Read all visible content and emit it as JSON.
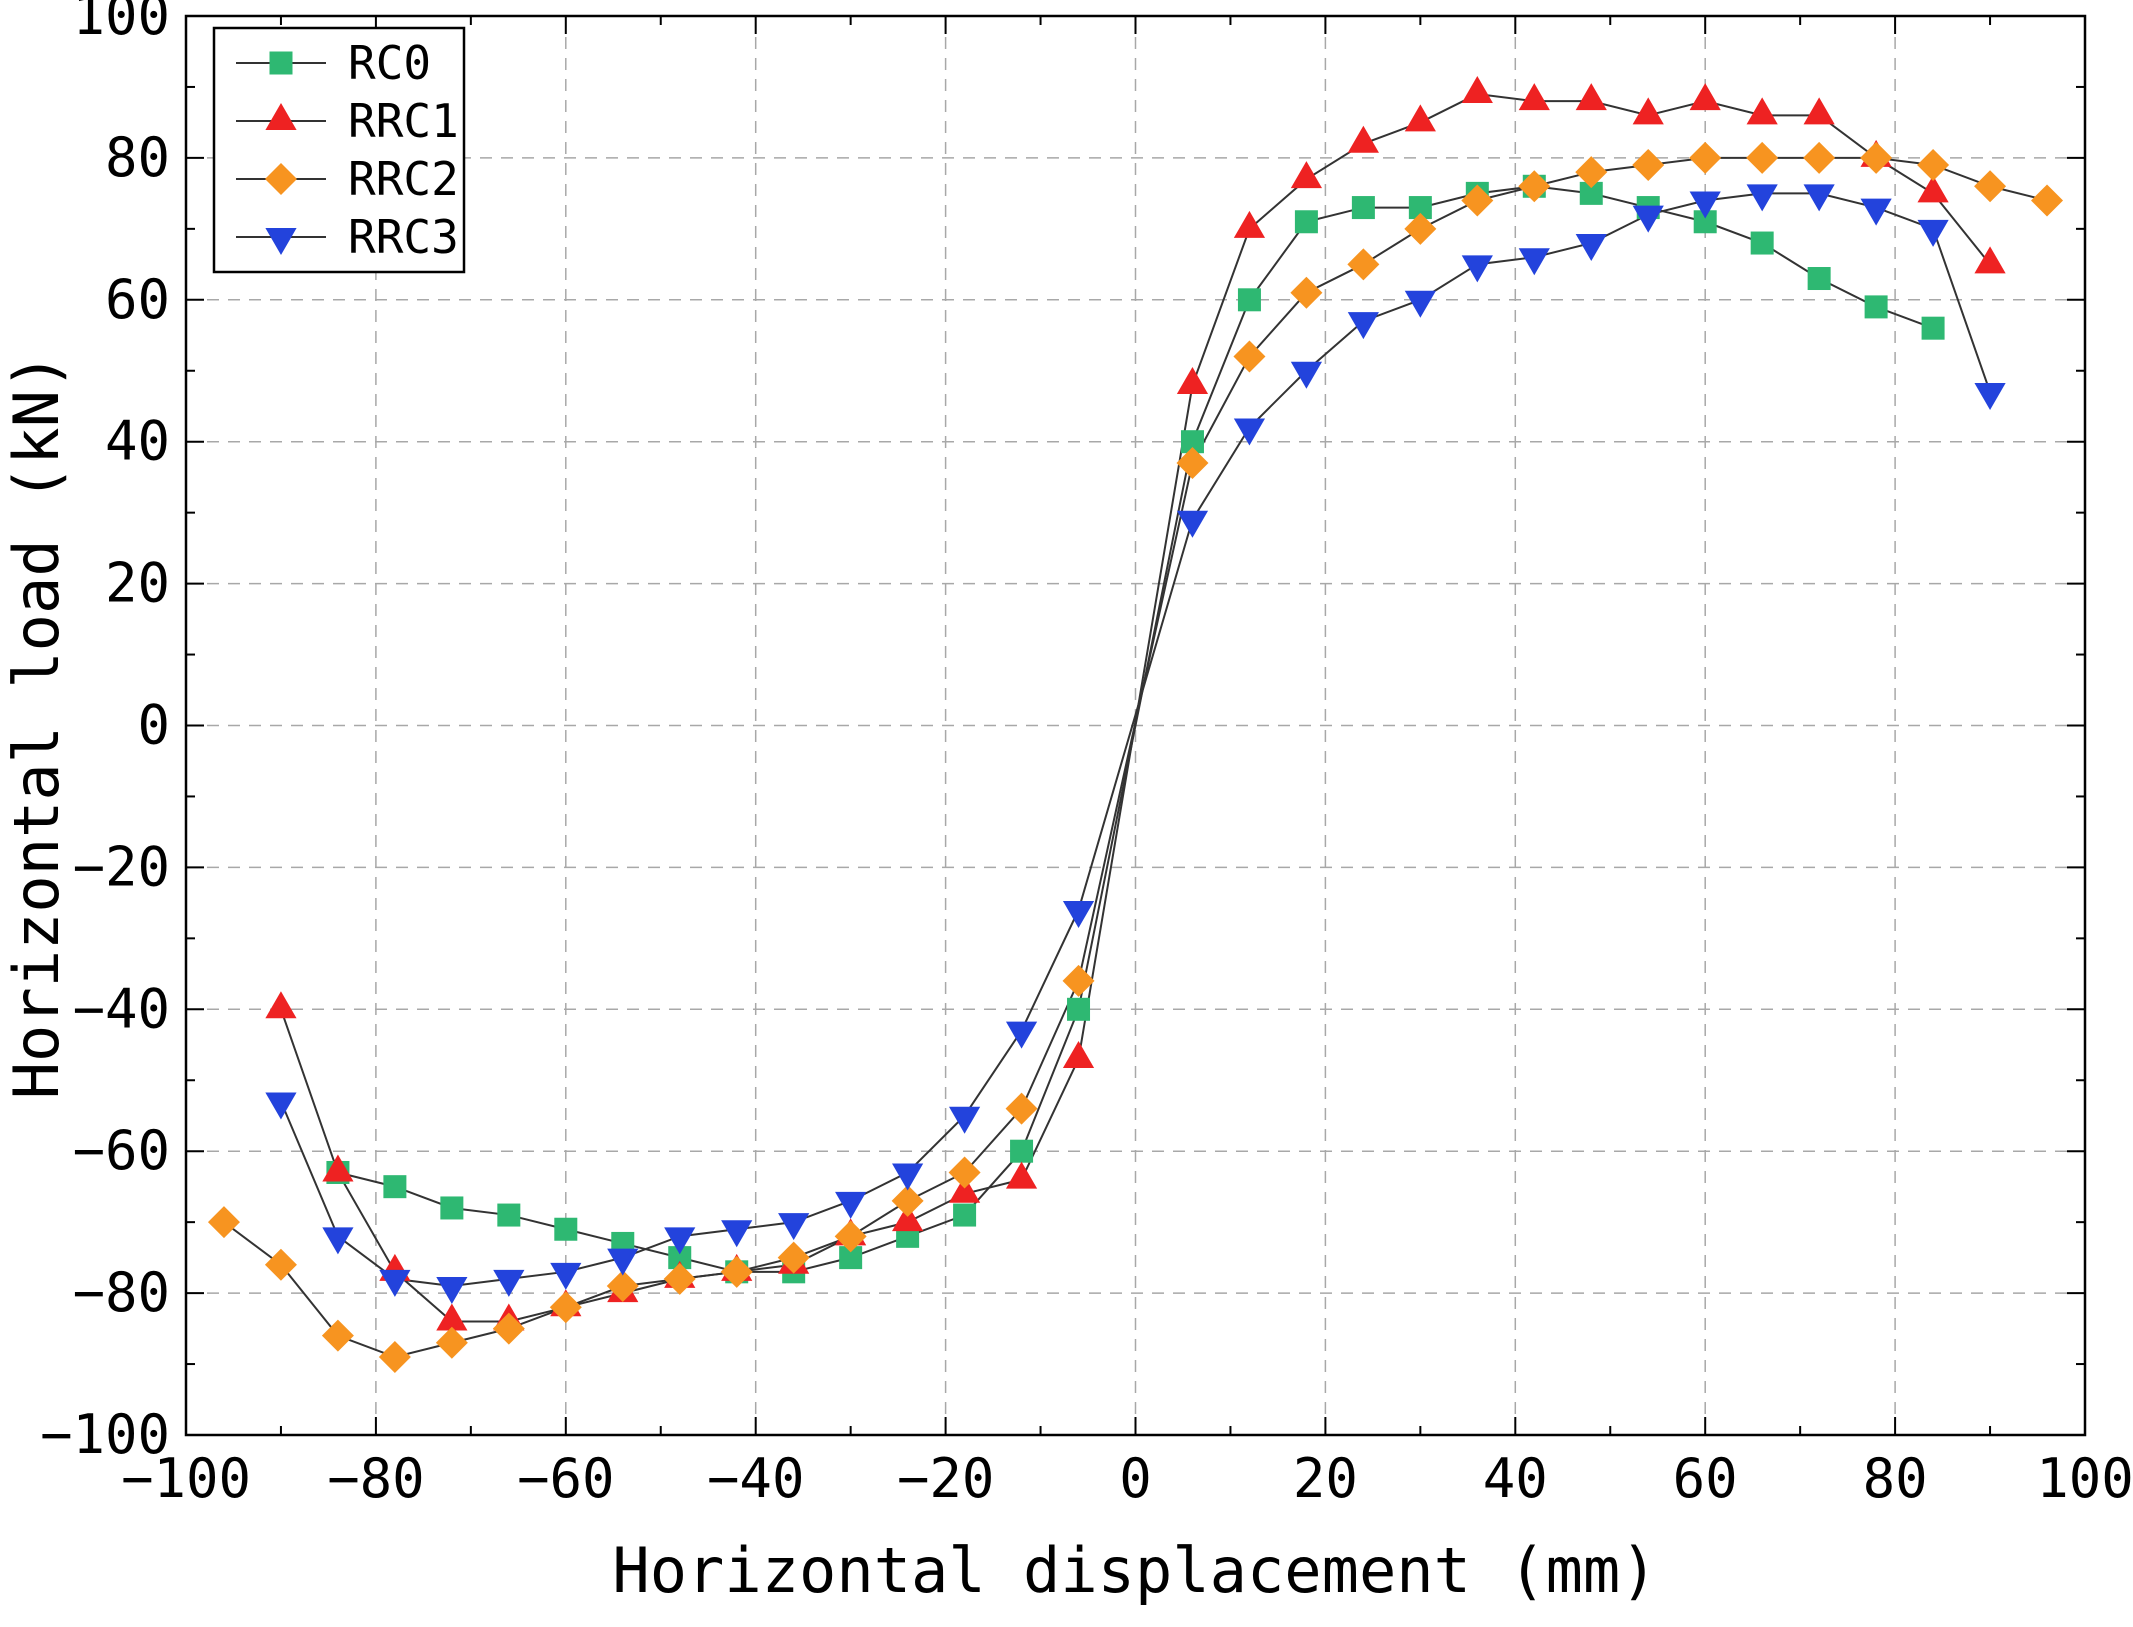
{
  "chart_data": {
    "type": "line",
    "title": "",
    "xlabel": "Horizontal displacement (mm)",
    "ylabel": "Horizontal load (kN)",
    "xlim": [
      -100,
      100
    ],
    "ylim": [
      -100,
      100
    ],
    "xtick_step": 20,
    "ytick_step": 20,
    "minor_tick_step": 10,
    "grid": {
      "show": true,
      "color": "#a8a8a8",
      "dash": [
        12,
        9
      ]
    },
    "line_color": "#333333",
    "legend": {
      "position": "top-left"
    },
    "series": [
      {
        "name": "RC0",
        "marker": "square",
        "color": "#2eb872",
        "points": [
          [
            -84,
            -63
          ],
          [
            -78,
            -65
          ],
          [
            -72,
            -68
          ],
          [
            -66,
            -69
          ],
          [
            -60,
            -71
          ],
          [
            -54,
            -73
          ],
          [
            -48,
            -75
          ],
          [
            -42,
            -77
          ],
          [
            -36,
            -77
          ],
          [
            -30,
            -75
          ],
          [
            -24,
            -72
          ],
          [
            -18,
            -69
          ],
          [
            -12,
            -60
          ],
          [
            -6,
            -40
          ],
          [
            6,
            40
          ],
          [
            12,
            60
          ],
          [
            18,
            71
          ],
          [
            24,
            73
          ],
          [
            30,
            73
          ],
          [
            36,
            75
          ],
          [
            42,
            76
          ],
          [
            48,
            75
          ],
          [
            54,
            73
          ],
          [
            60,
            71
          ],
          [
            66,
            68
          ],
          [
            72,
            63
          ],
          [
            78,
            59
          ],
          [
            84,
            56
          ]
        ]
      },
      {
        "name": "RRC1",
        "marker": "triangle-up",
        "color": "#ee2222",
        "points": [
          [
            -90,
            -40
          ],
          [
            -84,
            -63
          ],
          [
            -78,
            -77
          ],
          [
            -72,
            -84
          ],
          [
            -66,
            -84
          ],
          [
            -60,
            -82
          ],
          [
            -54,
            -80
          ],
          [
            -48,
            -78
          ],
          [
            -42,
            -77
          ],
          [
            -36,
            -76
          ],
          [
            -30,
            -72
          ],
          [
            -24,
            -70
          ],
          [
            -18,
            -66
          ],
          [
            -12,
            -64
          ],
          [
            -6,
            -47
          ],
          [
            6,
            48
          ],
          [
            12,
            70
          ],
          [
            18,
            77
          ],
          [
            24,
            82
          ],
          [
            30,
            85
          ],
          [
            36,
            89
          ],
          [
            42,
            88
          ],
          [
            48,
            88
          ],
          [
            54,
            86
          ],
          [
            60,
            88
          ],
          [
            66,
            86
          ],
          [
            72,
            86
          ],
          [
            78,
            80
          ],
          [
            84,
            75
          ],
          [
            90,
            65
          ]
        ]
      },
      {
        "name": "RRC2",
        "marker": "diamond",
        "color": "#f79420",
        "points": [
          [
            -96,
            -70
          ],
          [
            -90,
            -76
          ],
          [
            -84,
            -86
          ],
          [
            -78,
            -89
          ],
          [
            -72,
            -87
          ],
          [
            -66,
            -85
          ],
          [
            -60,
            -82
          ],
          [
            -54,
            -79
          ],
          [
            -48,
            -78
          ],
          [
            -42,
            -77
          ],
          [
            -36,
            -75
          ],
          [
            -30,
            -72
          ],
          [
            -24,
            -67
          ],
          [
            -18,
            -63
          ],
          [
            -12,
            -54
          ],
          [
            -6,
            -36
          ],
          [
            6,
            37
          ],
          [
            12,
            52
          ],
          [
            18,
            61
          ],
          [
            24,
            65
          ],
          [
            30,
            70
          ],
          [
            36,
            74
          ],
          [
            42,
            76
          ],
          [
            48,
            78
          ],
          [
            54,
            79
          ],
          [
            60,
            80
          ],
          [
            66,
            80
          ],
          [
            72,
            80
          ],
          [
            78,
            80
          ],
          [
            84,
            79
          ],
          [
            90,
            76
          ],
          [
            96,
            74
          ]
        ]
      },
      {
        "name": "RRC3",
        "marker": "triangle-down",
        "color": "#2343dc",
        "points": [
          [
            -90,
            -53
          ],
          [
            -84,
            -72
          ],
          [
            -78,
            -78
          ],
          [
            -72,
            -79
          ],
          [
            -66,
            -78
          ],
          [
            -60,
            -77
          ],
          [
            -54,
            -75
          ],
          [
            -48,
            -72
          ],
          [
            -42,
            -71
          ],
          [
            -36,
            -70
          ],
          [
            -30,
            -67
          ],
          [
            -24,
            -63
          ],
          [
            -18,
            -55
          ],
          [
            -12,
            -43
          ],
          [
            -6,
            -26
          ],
          [
            6,
            29
          ],
          [
            12,
            42
          ],
          [
            18,
            50
          ],
          [
            24,
            57
          ],
          [
            30,
            60
          ],
          [
            36,
            65
          ],
          [
            42,
            66
          ],
          [
            48,
            68
          ],
          [
            54,
            72
          ],
          [
            60,
            74
          ],
          [
            66,
            75
          ],
          [
            72,
            75
          ],
          [
            78,
            73
          ],
          [
            84,
            70
          ],
          [
            90,
            47
          ]
        ]
      }
    ]
  }
}
